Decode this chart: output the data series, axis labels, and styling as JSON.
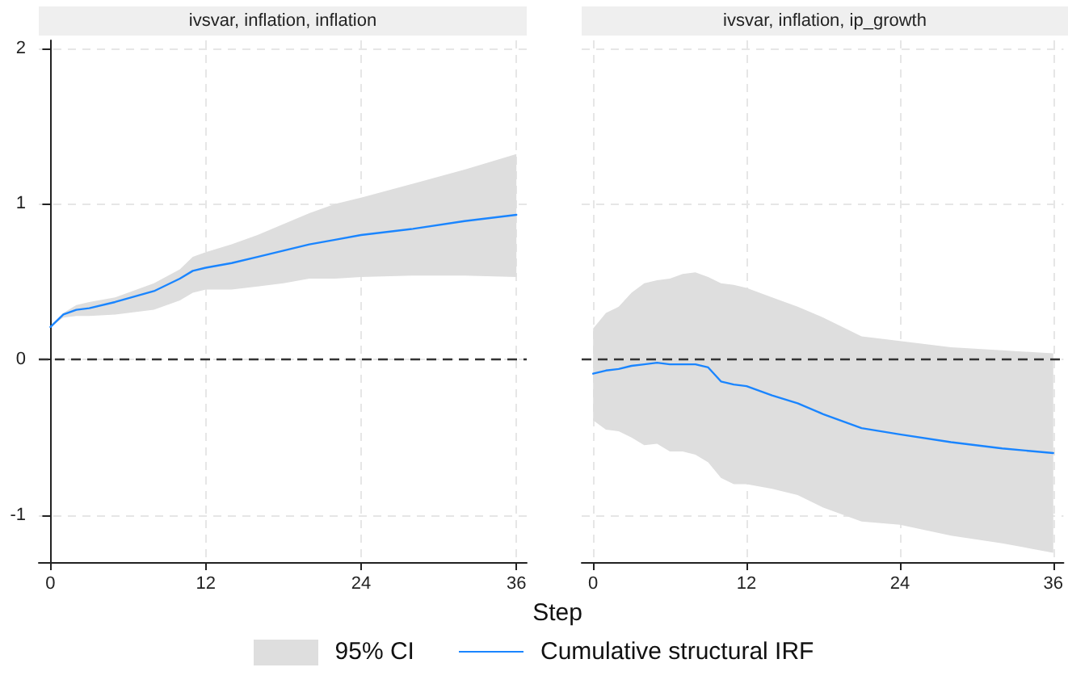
{
  "chart_data": [
    {
      "type": "line",
      "title": "ivsvar, inflation, inflation",
      "xlabel": "Step",
      "annotations": [
        "95% CI"
      ],
      "xlim": [
        -0.9,
        36.8
      ],
      "ylim": [
        -1.3,
        2.05
      ],
      "xticks": [
        0,
        12,
        24,
        36
      ],
      "yticks": [
        -1,
        0,
        1,
        2
      ],
      "grid": true,
      "legend": "bottom",
      "marker": "none",
      "line_style": "solid",
      "ref_lines": [
        {
          "axis": "y",
          "value": 0,
          "line_style": "dashed",
          "color": "#333333"
        }
      ],
      "series": [
        {
          "name": "Cumulative structural IRF",
          "color": "#1a85ff",
          "x": [
            0,
            1,
            2,
            3,
            5,
            8,
            10,
            11,
            12,
            14,
            16,
            18,
            20,
            22,
            24,
            28,
            32,
            36
          ],
          "values": [
            0.21,
            0.29,
            0.32,
            0.33,
            0.37,
            0.44,
            0.52,
            0.57,
            0.59,
            0.62,
            0.66,
            0.7,
            0.74,
            0.77,
            0.8,
            0.84,
            0.89,
            0.93
          ],
          "lower": [
            0.21,
            0.27,
            0.28,
            0.28,
            0.29,
            0.32,
            0.38,
            0.43,
            0.45,
            0.45,
            0.47,
            0.49,
            0.52,
            0.52,
            0.53,
            0.54,
            0.54,
            0.53
          ],
          "upper": [
            0.21,
            0.3,
            0.35,
            0.37,
            0.4,
            0.49,
            0.58,
            0.66,
            0.69,
            0.74,
            0.8,
            0.87,
            0.94,
            1.0,
            1.04,
            1.13,
            1.22,
            1.32
          ]
        }
      ]
    },
    {
      "type": "line",
      "title": "ivsvar, inflation, ip_growth",
      "xlim": [
        -0.9,
        36.8
      ],
      "ylim": [
        -1.3,
        2.05
      ],
      "xticks": [
        0,
        12,
        24,
        36
      ],
      "yticks": [
        -1,
        0,
        1,
        2
      ],
      "grid": true,
      "tick_labels": "x",
      "marker": "none",
      "line_style": "solid",
      "ref_lines": [
        {
          "axis": "y",
          "value": 0,
          "line_style": "dashed",
          "color": "#333333"
        }
      ],
      "series": [
        {
          "color": "#1a85ff",
          "x": [
            0,
            1,
            2,
            3,
            4,
            5,
            6,
            7,
            8,
            9,
            10,
            11,
            12,
            14,
            16,
            18,
            21,
            24,
            28,
            32,
            36
          ],
          "values": [
            -0.09,
            -0.07,
            -0.06,
            -0.04,
            -0.03,
            -0.02,
            -0.03,
            -0.03,
            -0.03,
            -0.05,
            -0.14,
            -0.16,
            -0.17,
            -0.23,
            -0.28,
            -0.35,
            -0.44,
            -0.48,
            -0.53,
            -0.57,
            -0.6
          ],
          "lower": [
            -0.39,
            -0.45,
            -0.46,
            -0.5,
            -0.55,
            -0.54,
            -0.59,
            -0.59,
            -0.61,
            -0.66,
            -0.76,
            -0.8,
            -0.8,
            -0.83,
            -0.87,
            -0.95,
            -1.04,
            -1.06,
            -1.13,
            -1.18,
            -1.24
          ],
          "upper": [
            0.2,
            0.3,
            0.34,
            0.43,
            0.49,
            0.51,
            0.52,
            0.55,
            0.56,
            0.53,
            0.49,
            0.48,
            0.46,
            0.4,
            0.34,
            0.27,
            0.15,
            0.12,
            0.08,
            0.06,
            0.04
          ]
        }
      ]
    }
  ]
}
